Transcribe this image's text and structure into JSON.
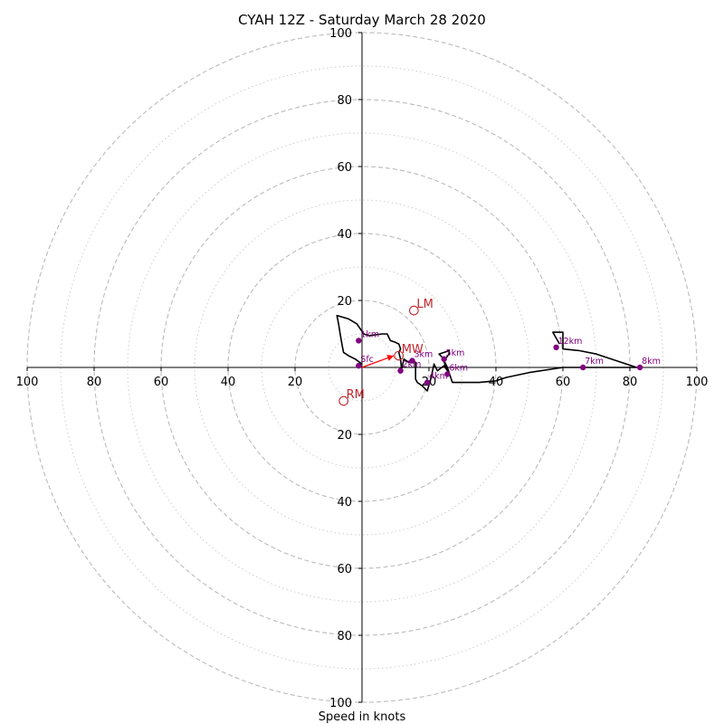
{
  "chart_data": {
    "type": "scatter",
    "subtype": "hodograph",
    "title": "CYAH 12Z - Saturday March 28 2020",
    "xlabel": "Speed in knots",
    "ylabel": "",
    "xlim": [
      -100,
      100
    ],
    "ylim": [
      -100,
      100
    ],
    "ring_major": [
      20,
      40,
      60,
      80,
      100
    ],
    "ring_minor": [
      10,
      30,
      50,
      70,
      90
    ],
    "tick_values": [
      20,
      40,
      60,
      80,
      100
    ],
    "tick_labels": [
      "20",
      "40",
      "60",
      "80",
      "100"
    ],
    "grid": true,
    "colors": {
      "trace": "#000000",
      "points": "#800080",
      "storm_motion": "#c0262c",
      "shear_vector": "#ff0000",
      "grid_major": "#bbbbbb",
      "grid_minor": "#cccccc",
      "axes": "#000000"
    },
    "hodograph_trace": [
      [
        0,
        1
      ],
      [
        -2,
        2.5
      ],
      [
        -4,
        3.5
      ],
      [
        -5.5,
        4.5
      ],
      [
        -6,
        7
      ],
      [
        -6.5,
        10
      ],
      [
        -7,
        13
      ],
      [
        -7.5,
        15.5
      ],
      [
        -4,
        14.5
      ],
      [
        -1.5,
        13
      ],
      [
        0.5,
        10
      ],
      [
        2,
        9.5
      ],
      [
        6,
        10
      ],
      [
        7.5,
        10
      ],
      [
        8.5,
        8
      ],
      [
        10,
        7.5
      ],
      [
        11,
        7
      ],
      [
        11.5,
        5.5
      ],
      [
        11,
        4.5
      ],
      [
        11.5,
        2.5
      ],
      [
        11.8,
        -0.5
      ],
      [
        12.5,
        2.5
      ],
      [
        14,
        1.5
      ],
      [
        15,
        2
      ],
      [
        16,
        1.5
      ],
      [
        16,
        -3.5
      ],
      [
        16.5,
        -4.5
      ],
      [
        18,
        -5.5
      ],
      [
        19.5,
        -7
      ],
      [
        20.5,
        -3.5
      ],
      [
        21.5,
        1
      ],
      [
        22.5,
        -1
      ],
      [
        24.5,
        0.5
      ],
      [
        25.5,
        -1
      ],
      [
        24,
        3
      ],
      [
        23,
        4
      ],
      [
        26,
        5
      ],
      [
        26,
        4
      ],
      [
        24.5,
        2
      ],
      [
        25.5,
        0
      ],
      [
        26,
        -1.5
      ],
      [
        27,
        -4.5
      ],
      [
        35,
        -4.5
      ],
      [
        40,
        -4
      ],
      [
        43,
        -3
      ],
      [
        50,
        -1.5
      ],
      [
        60,
        0
      ],
      [
        80,
        0
      ],
      [
        82,
        0
      ],
      [
        76,
        2
      ],
      [
        70,
        4
      ],
      [
        65,
        5
      ],
      [
        60,
        5.5
      ],
      [
        60,
        10.5
      ],
      [
        57,
        10.5
      ],
      [
        59,
        7
      ]
    ],
    "height_points": [
      {
        "label": "Sfc",
        "x": -1,
        "y": 0.5
      },
      {
        "label": "1km",
        "x": -1,
        "y": 8
      },
      {
        "label": "2km",
        "x": 11.5,
        "y": -1
      },
      {
        "label": "3km",
        "x": 15,
        "y": 2
      },
      {
        "label": "4km",
        "x": 19.5,
        "y": -4.5
      },
      {
        "label": "5km",
        "x": 24.5,
        "y": 2.5
      },
      {
        "label": "6km",
        "x": 25.5,
        "y": -2
      },
      {
        "label": "7km",
        "x": 66,
        "y": 0
      },
      {
        "label": "8km",
        "x": 83,
        "y": 0
      },
      {
        "label": "12km",
        "x": 58,
        "y": 6
      }
    ],
    "storm_motion": [
      {
        "label": "LM",
        "x": 15.5,
        "y": 17
      },
      {
        "label": "RM",
        "x": -5.5,
        "y": -10
      },
      {
        "label": "MW",
        "x": 11,
        "y": 3.5
      }
    ],
    "shear_vector": {
      "from": [
        0,
        0
      ],
      "to": [
        9.5,
        3.5
      ]
    }
  }
}
